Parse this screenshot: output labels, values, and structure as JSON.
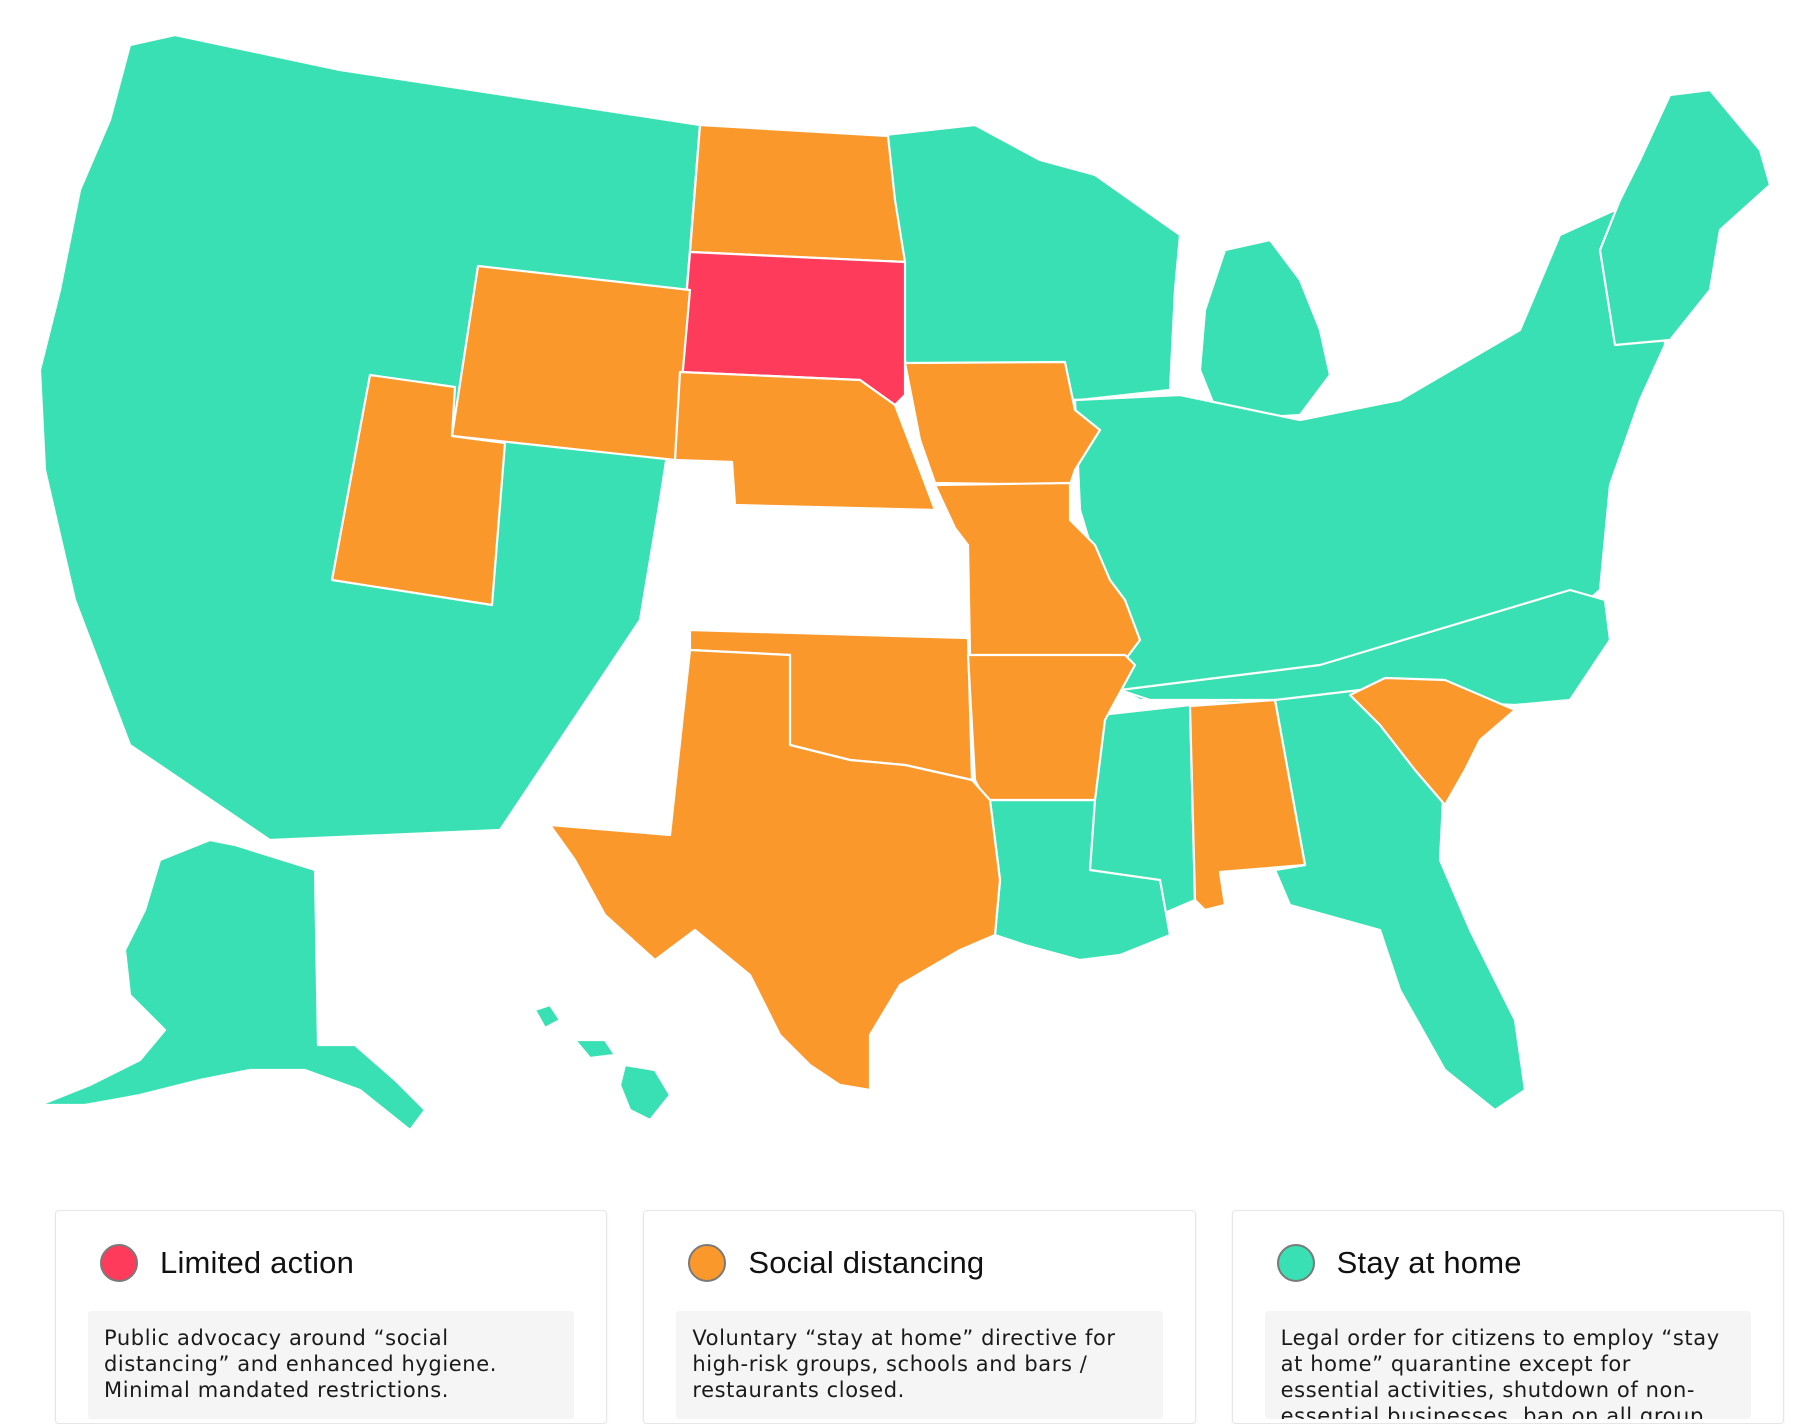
{
  "map": {
    "regions": [
      {
        "name": "west",
        "category": "stay_at_home"
      },
      {
        "name": "alaska",
        "category": "stay_at_home"
      },
      {
        "name": "hawaii",
        "category": "stay_at_home"
      },
      {
        "name": "minnesota-wisconsin",
        "category": "stay_at_home"
      },
      {
        "name": "midwest-east",
        "category": "stay_at_home"
      },
      {
        "name": "michigan",
        "category": "stay_at_home"
      },
      {
        "name": "new-england",
        "category": "stay_at_home"
      },
      {
        "name": "louisiana",
        "category": "stay_at_home"
      },
      {
        "name": "mississippi",
        "category": "stay_at_home"
      },
      {
        "name": "georgia-florida",
        "category": "stay_at_home"
      },
      {
        "name": "carolina-north",
        "category": "stay_at_home"
      },
      {
        "name": "north-dakota",
        "category": "social_distancing"
      },
      {
        "name": "wyoming",
        "category": "social_distancing"
      },
      {
        "name": "utah",
        "category": "social_distancing"
      },
      {
        "name": "nebraska",
        "category": "social_distancing"
      },
      {
        "name": "iowa",
        "category": "social_distancing"
      },
      {
        "name": "missouri",
        "category": "social_distancing"
      },
      {
        "name": "arkansas",
        "category": "social_distancing"
      },
      {
        "name": "oklahoma",
        "category": "social_distancing"
      },
      {
        "name": "texas",
        "category": "social_distancing"
      },
      {
        "name": "alabama",
        "category": "social_distancing"
      },
      {
        "name": "south-carolina",
        "category": "social_distancing"
      },
      {
        "name": "south-dakota",
        "category": "limited_action"
      }
    ]
  },
  "colors": {
    "limited_action": "#fe3b5a",
    "social_distancing": "#fa982c",
    "stay_at_home": "#38e0b3"
  },
  "legend": [
    {
      "key": "limited_action",
      "title": "Limited action",
      "description": "Public advocacy around “social distancing” and enhanced hygiene. Minimal mandated restrictions."
    },
    {
      "key": "social_distancing",
      "title": "Social distancing",
      "description": "Voluntary “stay at home” directive for high-risk groups, schools and bars / restaurants closed."
    },
    {
      "key": "stay_at_home",
      "title": "Stay at home",
      "description": "Legal order for citizens to employ “stay at home” quarantine except for essential activities, shutdown of non-essential businesses, ban on all group events."
    }
  ]
}
